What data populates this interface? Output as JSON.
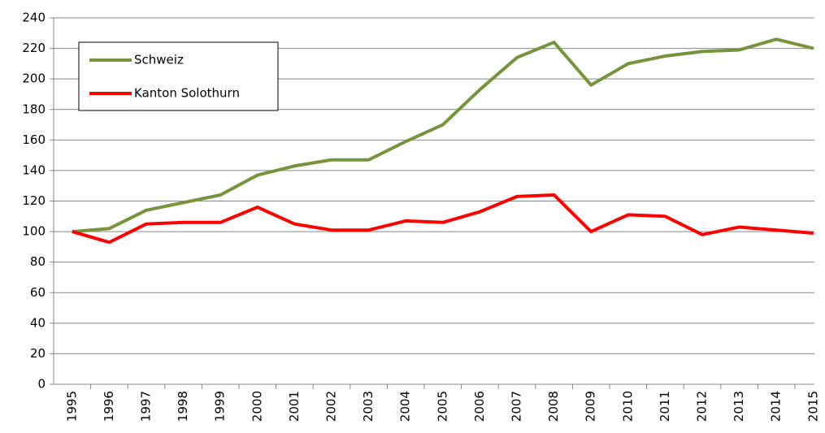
{
  "chart_data": {
    "type": "line",
    "categories": [
      "1995",
      "1996",
      "1997",
      "1998",
      "1999",
      "2000",
      "2001",
      "2002",
      "2003",
      "2004",
      "2005",
      "2006",
      "2007",
      "2008",
      "2009",
      "2010",
      "2011",
      "2012",
      "2013",
      "2014",
      "2015"
    ],
    "series": [
      {
        "name": "Schweiz",
        "color": "#77933c",
        "values": [
          100,
          102,
          114,
          119,
          124,
          137,
          143,
          147,
          147,
          159,
          170,
          193,
          214,
          224,
          196,
          210,
          215,
          218,
          219,
          226,
          220
        ]
      },
      {
        "name": "Kanton Solothurn",
        "color": "#ff0000",
        "values": [
          100,
          93,
          105,
          106,
          106,
          116,
          105,
          101,
          101,
          107,
          106,
          113,
          123,
          124,
          100,
          111,
          110,
          98,
          103,
          101,
          99
        ]
      }
    ],
    "ylim": [
      0,
      240
    ],
    "yticks": [
      0,
      20,
      40,
      60,
      80,
      100,
      120,
      140,
      160,
      180,
      200,
      220,
      240
    ],
    "grid": true,
    "legend": "upper left"
  }
}
